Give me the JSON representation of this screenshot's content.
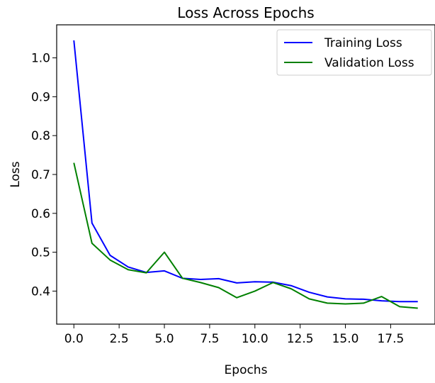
{
  "chart_data": {
    "type": "line",
    "title": "Loss Across Epochs",
    "xlabel": "Epochs",
    "ylabel": "Loss",
    "xlim": [
      -0.95,
      19.95
    ],
    "ylim": [
      0.315,
      1.085
    ],
    "xticks": [
      0.0,
      2.5,
      5.0,
      7.5,
      10.0,
      12.5,
      15.0,
      17.5
    ],
    "xtick_labels": [
      "0.0",
      "2.5",
      "5.0",
      "7.5",
      "10.0",
      "12.5",
      "15.0",
      "17.5"
    ],
    "yticks": [
      0.4,
      0.5,
      0.6,
      0.7,
      0.8,
      0.9,
      1.0
    ],
    "ytick_labels": [
      "0.4",
      "0.5",
      "0.6",
      "0.7",
      "0.8",
      "0.9",
      "1.0"
    ],
    "grid": false,
    "legend_position": "top-right",
    "x": [
      0,
      1,
      2,
      3,
      4,
      5,
      6,
      7,
      8,
      9,
      10,
      11,
      12,
      13,
      14,
      15,
      16,
      17,
      18,
      19
    ],
    "series": [
      {
        "name": "Training Loss",
        "color": "#0000ff",
        "values": [
          1.045,
          0.575,
          0.492,
          0.462,
          0.448,
          0.452,
          0.433,
          0.43,
          0.432,
          0.421,
          0.424,
          0.423,
          0.414,
          0.397,
          0.385,
          0.38,
          0.379,
          0.375,
          0.373,
          0.373
        ]
      },
      {
        "name": "Validation Loss",
        "color": "#008000",
        "values": [
          0.73,
          0.523,
          0.48,
          0.455,
          0.447,
          0.5,
          0.433,
          0.422,
          0.409,
          0.383,
          0.4,
          0.422,
          0.406,
          0.38,
          0.369,
          0.367,
          0.369,
          0.386,
          0.36,
          0.356
        ]
      }
    ]
  }
}
